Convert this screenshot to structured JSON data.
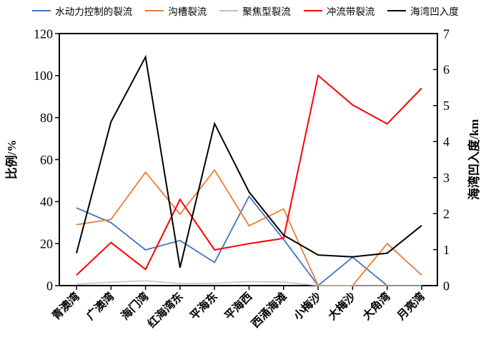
{
  "chart_data": {
    "type": "line",
    "title": "",
    "categories": [
      "青澳湾",
      "广澳湾",
      "海门湾",
      "红海湾东",
      "平海东",
      "平海西",
      "西涌海滩",
      "小梅沙",
      "大梅沙",
      "大角湾",
      "月亮湾"
    ],
    "series": [
      {
        "name": "水动力控制的裂流",
        "color": "#4472C4",
        "axis": "left",
        "width": 1.8,
        "values": [
          37,
          30,
          17,
          21.5,
          11,
          42.5,
          22,
          0,
          13.5,
          0,
          null
        ]
      },
      {
        "name": "沟槽裂流",
        "color": "#ED7D31",
        "axis": "left",
        "width": 1.8,
        "values": [
          29,
          31.5,
          54,
          34,
          55,
          28.5,
          36.5,
          0,
          0,
          20,
          5
        ]
      },
      {
        "name": "聚焦型裂流",
        "color": "#BFBFBF",
        "axis": "left",
        "width": 1.5,
        "values": [
          0.7,
          1.6,
          2.3,
          1.0,
          1.1,
          1.9,
          1.7,
          0,
          0,
          0,
          0
        ]
      },
      {
        "name": "冲流带裂流",
        "color": "#FF0000",
        "axis": "left",
        "width": 2.0,
        "values": [
          5,
          20.5,
          7.7,
          41,
          17,
          20,
          22.5,
          100,
          86,
          77,
          94
        ]
      },
      {
        "name": "海湾凹入度",
        "color": "#000000",
        "axis": "right",
        "width": 2.0,
        "values": [
          0.9,
          4.55,
          6.35,
          0.5,
          4.5,
          2.6,
          1.4,
          0.85,
          0.8,
          0.9,
          1.67
        ]
      }
    ],
    "left_axis": {
      "label": "比例/%",
      "min": 0,
      "max": 120,
      "ticks": [
        0,
        20,
        40,
        60,
        80,
        100,
        120
      ]
    },
    "right_axis": {
      "label": "海湾凹入度/km",
      "min": 0,
      "max": 7,
      "ticks": [
        0,
        1,
        2,
        3,
        4,
        5,
        6,
        7
      ]
    },
    "x_axis": {
      "tick_label_rotation": -45
    },
    "legend_position": "top",
    "grid": false
  }
}
